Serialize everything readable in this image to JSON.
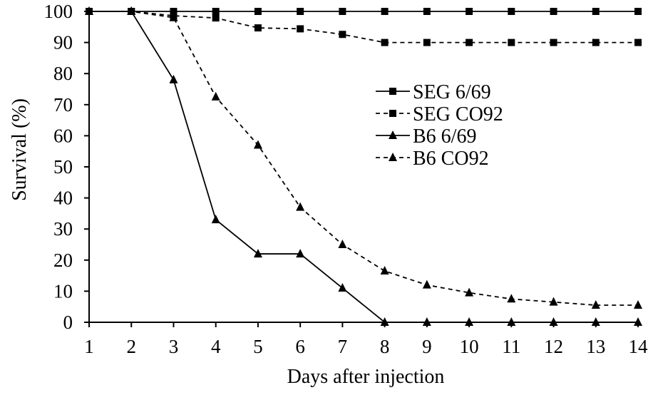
{
  "chart_data": {
    "type": "line",
    "title": "",
    "xlabel": "Days after injection",
    "ylabel": "Survival (%)",
    "xlim": [
      1,
      14
    ],
    "ylim": [
      0,
      100
    ],
    "x_ticks": [
      "1",
      "2",
      "3",
      "4",
      "5",
      "6",
      "7",
      "8",
      "9",
      "10",
      "11",
      "12",
      "13",
      "14"
    ],
    "y_ticks": [
      "0",
      "10",
      "20",
      "30",
      "40",
      "50",
      "60",
      "70",
      "80",
      "90",
      "100"
    ],
    "x": [
      1,
      2,
      3,
      4,
      5,
      6,
      7,
      8,
      9,
      10,
      11,
      12,
      13,
      14
    ],
    "grid": false,
    "legend_position": "center-right",
    "series": [
      {
        "name": "SEG 6/69",
        "marker": "square",
        "dash": "solid",
        "values": [
          100,
          100,
          100,
          100,
          100,
          100,
          100,
          100,
          100,
          100,
          100,
          100,
          100,
          100
        ]
      },
      {
        "name": "SEG CO92",
        "marker": "square",
        "dash": "dashed",
        "values": [
          100,
          100,
          98.6,
          97.9,
          94.7,
          94.4,
          92.6,
          90,
          90,
          90,
          90,
          90,
          90,
          90
        ]
      },
      {
        "name": "B6 6/69",
        "marker": "triangle",
        "dash": "solid",
        "values": [
          100,
          100,
          78,
          33,
          22,
          22,
          11,
          0,
          0,
          0,
          0,
          0,
          0,
          0
        ]
      },
      {
        "name": "B6 CO92",
        "marker": "triangle",
        "dash": "dashed",
        "values": [
          100,
          100,
          98,
          72.5,
          57,
          37,
          25,
          16.5,
          12,
          9.5,
          7.5,
          6.5,
          5.5,
          5.5
        ]
      }
    ]
  }
}
